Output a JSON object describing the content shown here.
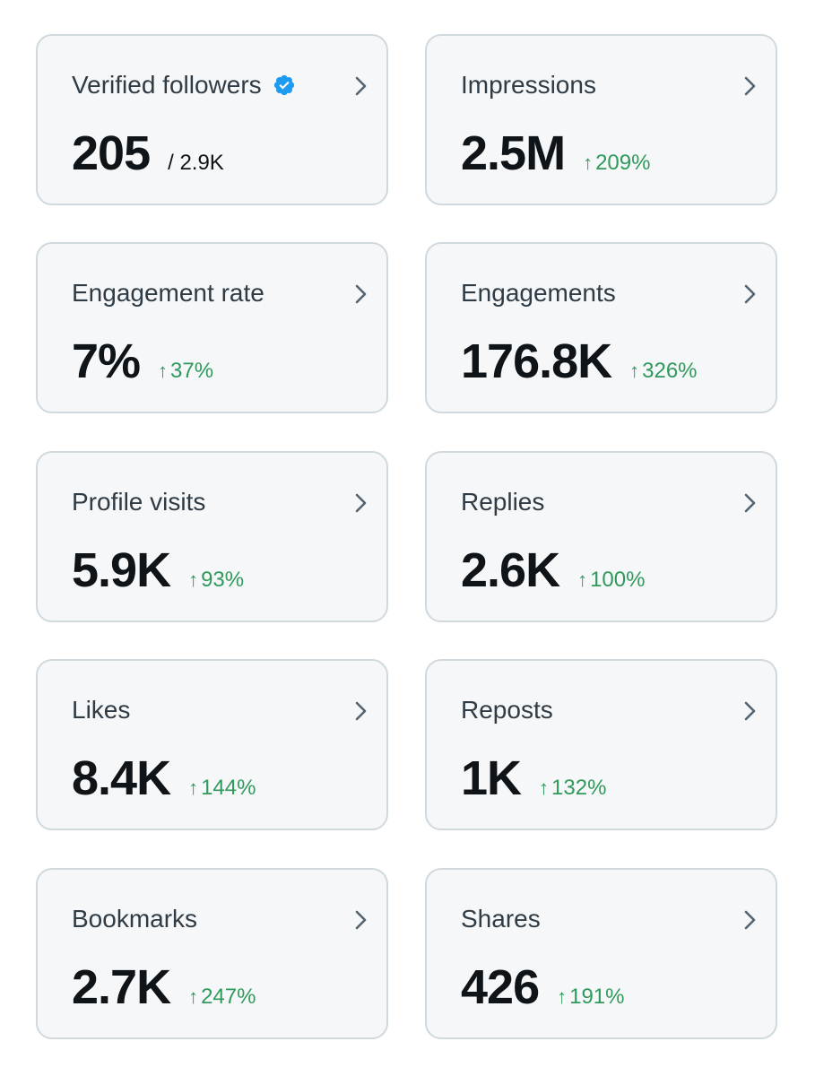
{
  "colors": {
    "card_bg": "#f6f7f8",
    "card_border": "#cfd9de",
    "label": "#2f3b45",
    "value": "#0f1419",
    "positive_change": "#2f9a5b",
    "verified_badge": "#1d9bf0"
  },
  "cards": [
    {
      "title": "Verified followers",
      "value": "205",
      "sub": "/ 2.9K",
      "icon": "verified-badge-icon"
    },
    {
      "title": "Impressions",
      "value": "2.5M",
      "arrow": "↑",
      "change": "209%"
    },
    {
      "title": "Engagement rate",
      "value": "7%",
      "arrow": "↑",
      "change": "37%"
    },
    {
      "title": "Engagements",
      "value": "176.8K",
      "arrow": "↑",
      "change": "326%"
    },
    {
      "title": "Profile visits",
      "value": "5.9K",
      "arrow": "↑",
      "change": "93%"
    },
    {
      "title": "Replies",
      "value": "2.6K",
      "arrow": "↑",
      "change": "100%"
    },
    {
      "title": "Likes",
      "value": "8.4K",
      "arrow": "↑",
      "change": "144%"
    },
    {
      "title": "Reposts",
      "value": "1K",
      "arrow": "↑",
      "change": "132%"
    },
    {
      "title": "Bookmarks",
      "value": "2.7K",
      "arrow": "↑",
      "change": "247%"
    },
    {
      "title": "Shares",
      "value": "426",
      "arrow": "↑",
      "change": "191%"
    }
  ]
}
